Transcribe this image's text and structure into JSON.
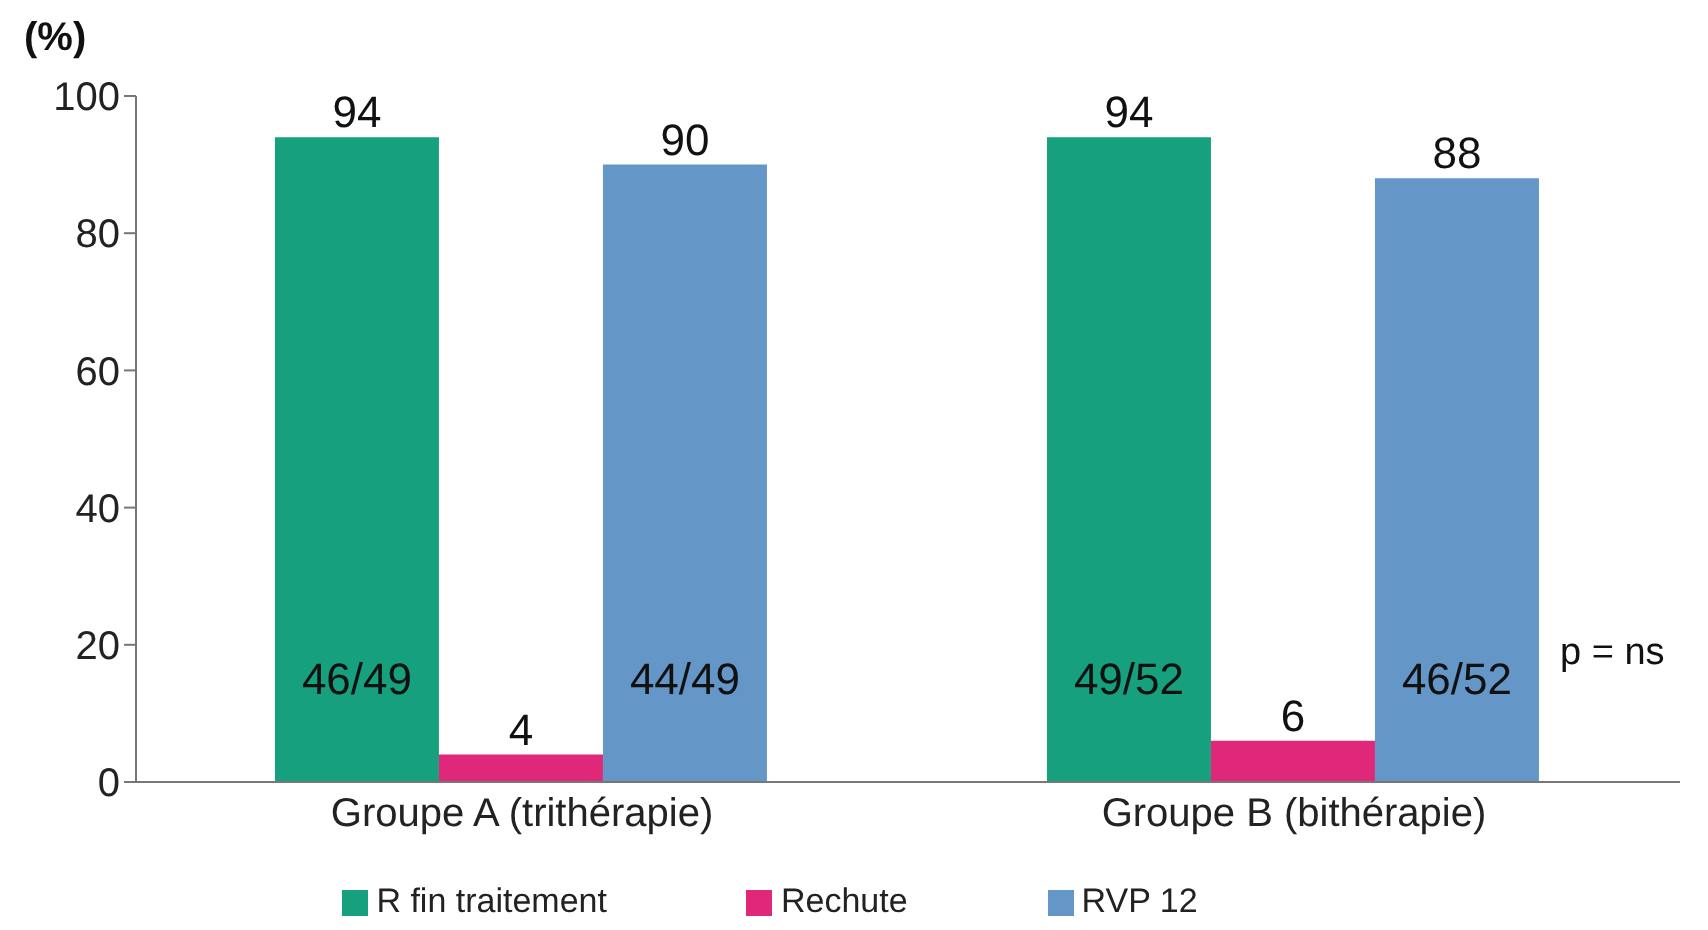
{
  "chart_data": {
    "type": "bar",
    "ylabel": "(%)",
    "categories": [
      "Groupe A (trithérapie)",
      "Groupe B (bithérapie)"
    ],
    "series": [
      {
        "name": "R fin traitement",
        "color": "#16a07e",
        "values": [
          94,
          94
        ]
      },
      {
        "name": "Rechute",
        "color": "#e0287a",
        "values": [
          4,
          6
        ]
      },
      {
        "name": "RVP 12",
        "color": "#6596c8",
        "values": [
          90,
          88
        ]
      }
    ],
    "ylim": [
      0,
      100
    ],
    "yticks": [
      0,
      20,
      40,
      60,
      80,
      100
    ],
    "grid": false,
    "legend": "bottom",
    "data_labels": true,
    "annotations": [
      "46/49",
      "44/49",
      "49/52",
      "46/52",
      "p = ns"
    ]
  }
}
